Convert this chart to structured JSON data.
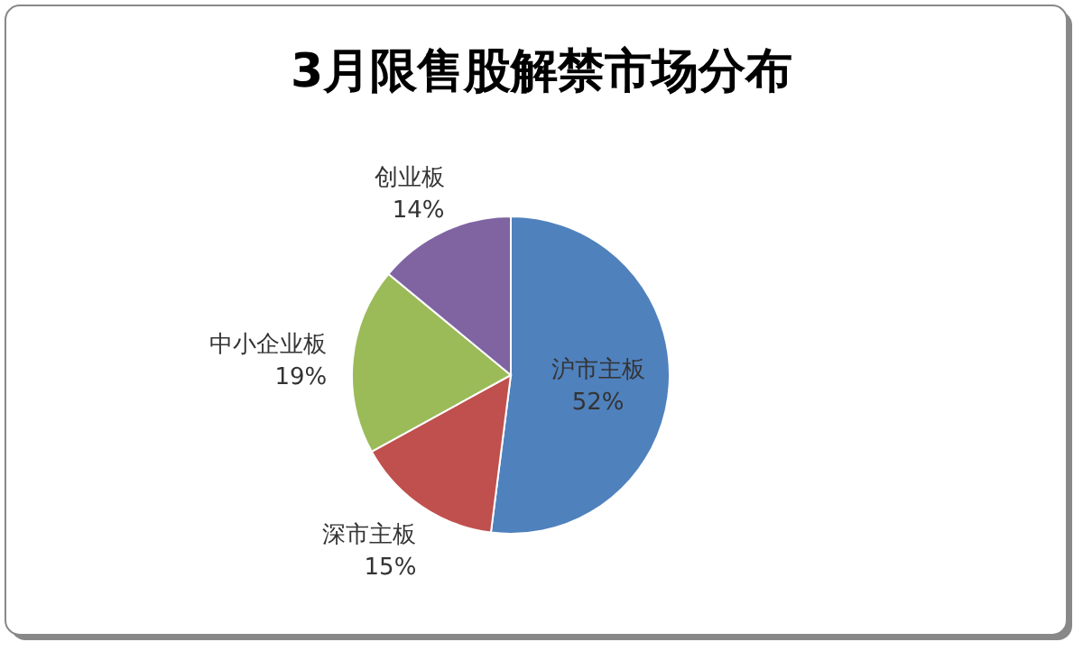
{
  "chart_data": {
    "type": "pie",
    "title": "3月限售股解禁市场分布",
    "categories": [
      "沪市主板",
      "深市主板",
      "中小企业板",
      "创业板"
    ],
    "values": [
      52,
      15,
      19,
      14
    ],
    "value_labels": [
      "52%",
      "15%",
      "19%",
      "14%"
    ],
    "colors": [
      "#4f81bd",
      "#c0504d",
      "#9bbb59",
      "#8064a2"
    ]
  }
}
